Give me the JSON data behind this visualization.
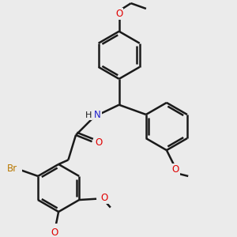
{
  "bg_color": "#ebebeb",
  "bond_color": "#1a1a1a",
  "bond_width": 1.8,
  "dbo": 0.018,
  "atom_colors": {
    "O": "#e00000",
    "N": "#2020cc",
    "Br": "#b87800",
    "H": "#1a1a1a"
  },
  "font_size": 8.5,
  "font_size_small": 7.5
}
